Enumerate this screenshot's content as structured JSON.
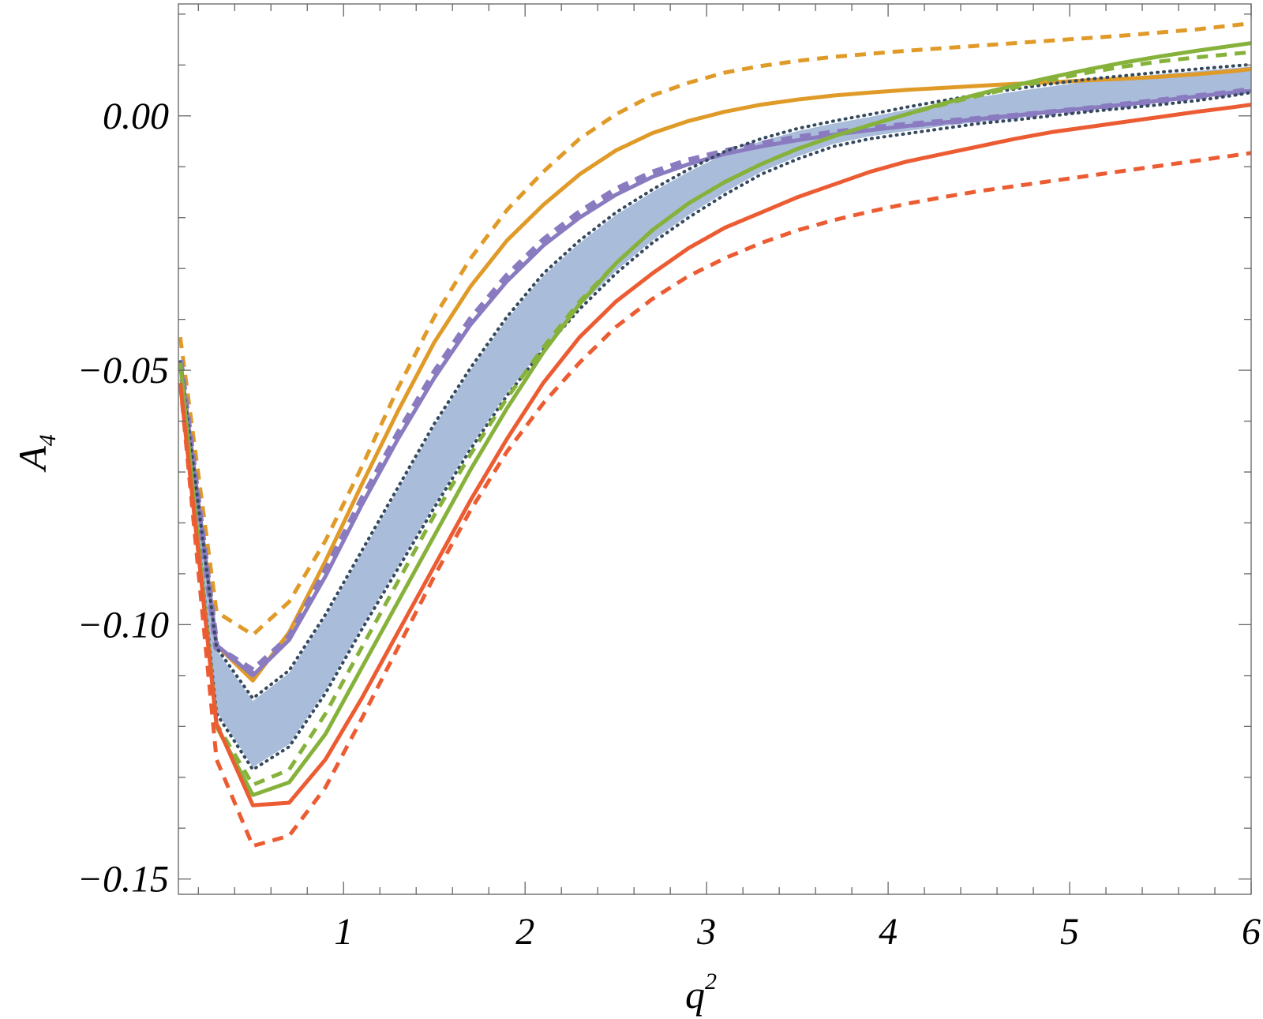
{
  "chart_data": {
    "type": "line",
    "xlabel": {
      "base": "q",
      "sup": "2"
    },
    "ylabel": {
      "base": "A",
      "sub": "4"
    },
    "xlim": [
      0.09,
      6.0
    ],
    "ylim": [
      -0.153,
      0.022
    ],
    "x_ticks": [
      {
        "value": 1,
        "label": "1"
      },
      {
        "value": 2,
        "label": "2"
      },
      {
        "value": 3,
        "label": "3"
      },
      {
        "value": 4,
        "label": "4"
      },
      {
        "value": 5,
        "label": "5"
      },
      {
        "value": 6,
        "label": "6"
      }
    ],
    "y_ticks": [
      {
        "value": 0.0,
        "label": "0.00"
      },
      {
        "value": -0.05,
        "label": "−0.05"
      },
      {
        "value": -0.1,
        "label": "−0.10"
      },
      {
        "value": -0.15,
        "label": "−0.15"
      }
    ],
    "x_minor_step": 0.2,
    "y_minor_step": 0.01,
    "grid": false,
    "x": [
      0.1,
      0.3,
      0.5,
      0.7,
      0.9,
      1.1,
      1.3,
      1.5,
      1.7,
      1.9,
      2.1,
      2.3,
      2.5,
      2.7,
      2.9,
      3.1,
      3.3,
      3.5,
      3.7,
      3.9,
      4.1,
      4.3,
      4.5,
      4.7,
      4.9,
      5.1,
      5.3,
      5.5,
      5.7,
      5.9,
      6.0
    ],
    "band": {
      "color": "#a9bcda",
      "lower": [
        -0.0485,
        -0.117,
        -0.128,
        -0.1235,
        -0.113,
        -0.1005,
        -0.0885,
        -0.0765,
        -0.065,
        -0.0545,
        -0.0455,
        -0.0375,
        -0.0305,
        -0.0245,
        -0.0195,
        -0.015,
        -0.011,
        -0.008,
        -0.0055,
        -0.004,
        -0.003,
        -0.002,
        -0.0012,
        -0.0005,
        0.0005,
        0.0013,
        0.002,
        0.0028,
        0.0037,
        0.0048,
        0.0055
      ],
      "upper": [
        -0.0485,
        -0.105,
        -0.115,
        -0.1095,
        -0.0985,
        -0.086,
        -0.0735,
        -0.061,
        -0.05,
        -0.04,
        -0.0315,
        -0.025,
        -0.0195,
        -0.015,
        -0.011,
        -0.0075,
        -0.005,
        -0.003,
        -0.0015,
        -0.0002,
        0.0012,
        0.0025,
        0.0037,
        0.0048,
        0.0058,
        0.0068,
        0.0075,
        0.0082,
        0.0088,
        0.0094,
        0.0097
      ]
    },
    "series": [
      {
        "color": "#e09a28",
        "style": "dashed",
        "width": 5,
        "values": [
          -0.0435,
          -0.0975,
          -0.102,
          -0.0955,
          -0.0835,
          -0.069,
          -0.0535,
          -0.0395,
          -0.028,
          -0.0185,
          -0.011,
          -0.0045,
          0.0003,
          0.004,
          0.0065,
          0.0085,
          0.0098,
          0.0108,
          0.0116,
          0.0122,
          0.0128,
          0.0133,
          0.0138,
          0.0143,
          0.0148,
          0.0153,
          0.0158,
          0.0164,
          0.017,
          0.0178,
          0.0182
        ]
      },
      {
        "color": "#e09a28",
        "style": "solid",
        "width": 5,
        "values": [
          -0.048,
          -0.104,
          -0.111,
          -0.1015,
          -0.0875,
          -0.0725,
          -0.058,
          -0.0445,
          -0.0335,
          -0.0245,
          -0.0175,
          -0.0115,
          -0.0068,
          -0.0034,
          -0.001,
          0.0008,
          0.0022,
          0.0032,
          0.004,
          0.0046,
          0.0051,
          0.0055,
          0.0059,
          0.0063,
          0.0066,
          0.007,
          0.0073,
          0.0077,
          0.0082,
          0.0088,
          0.0092
        ]
      },
      {
        "color": "#8a7bc0",
        "style": "dashed",
        "width": 8,
        "values": [
          -0.048,
          -0.1045,
          -0.109,
          -0.1025,
          -0.0895,
          -0.0755,
          -0.0625,
          -0.0505,
          -0.04,
          -0.0315,
          -0.0245,
          -0.019,
          -0.0145,
          -0.0112,
          -0.0088,
          -0.007,
          -0.0055,
          -0.0043,
          -0.0033,
          -0.0025,
          -0.0018,
          -0.0012,
          -0.0006,
          0.0,
          0.0007,
          0.0014,
          0.0022,
          0.003,
          0.0038,
          0.0046,
          0.0051
        ]
      },
      {
        "color": "#8a7bc0",
        "style": "solid",
        "width": 5,
        "values": [
          -0.048,
          -0.104,
          -0.11,
          -0.103,
          -0.0905,
          -0.0765,
          -0.0635,
          -0.0515,
          -0.041,
          -0.0325,
          -0.0255,
          -0.02,
          -0.0155,
          -0.012,
          -0.0095,
          -0.0075,
          -0.006,
          -0.0048,
          -0.0037,
          -0.0028,
          -0.002,
          -0.0013,
          -0.0006,
          0.0001,
          0.0008,
          0.0015,
          0.0022,
          0.003,
          0.0038,
          0.0046,
          0.005
        ]
      },
      {
        "color": "#34495e",
        "style": "dotted",
        "width": 4,
        "values": [
          -0.0485,
          -0.1045,
          -0.1145,
          -0.109,
          -0.098,
          -0.0855,
          -0.073,
          -0.0605,
          -0.0495,
          -0.0395,
          -0.031,
          -0.0245,
          -0.019,
          -0.0145,
          -0.0105,
          -0.007,
          -0.0045,
          -0.0025,
          -0.001,
          0.0003,
          0.0017,
          0.003,
          0.0042,
          0.0053,
          0.0063,
          0.0072,
          0.0079,
          0.0086,
          0.0092,
          0.0098,
          0.0101
        ]
      },
      {
        "color": "#34495e",
        "style": "dotted",
        "width": 4,
        "values": [
          -0.0485,
          -0.1175,
          -0.1285,
          -0.124,
          -0.1135,
          -0.101,
          -0.089,
          -0.077,
          -0.0655,
          -0.055,
          -0.046,
          -0.038,
          -0.031,
          -0.025,
          -0.02,
          -0.0155,
          -0.0115,
          -0.0085,
          -0.006,
          -0.0045,
          -0.0035,
          -0.0025,
          -0.0015,
          -0.0008,
          0.0,
          0.0008,
          0.0015,
          0.0022,
          0.003,
          0.004,
          0.0046
        ]
      },
      {
        "color": "#86b23b",
        "style": "dashed",
        "width": 5,
        "values": [
          -0.0485,
          -0.1195,
          -0.1315,
          -0.1285,
          -0.1175,
          -0.1045,
          -0.0915,
          -0.0785,
          -0.0665,
          -0.0555,
          -0.0455,
          -0.0365,
          -0.029,
          -0.0225,
          -0.0172,
          -0.013,
          -0.0095,
          -0.0065,
          -0.004,
          -0.0018,
          0.0003,
          0.0022,
          0.004,
          0.0056,
          0.0071,
          0.0085,
          0.0097,
          0.0107,
          0.0115,
          0.0122,
          0.0125
        ]
      },
      {
        "color": "#86b23b",
        "style": "solid",
        "width": 5,
        "values": [
          -0.0485,
          -0.12,
          -0.1335,
          -0.131,
          -0.1215,
          -0.1085,
          -0.0955,
          -0.0825,
          -0.0695,
          -0.0575,
          -0.0465,
          -0.037,
          -0.029,
          -0.0225,
          -0.0172,
          -0.013,
          -0.0095,
          -0.0065,
          -0.004,
          -0.0018,
          0.0003,
          0.0024,
          0.0043,
          0.006,
          0.0076,
          0.0091,
          0.0105,
          0.0117,
          0.0128,
          0.0138,
          0.0143
        ]
      },
      {
        "color": "#ec5c33",
        "style": "solid",
        "width": 5,
        "values": [
          -0.0525,
          -0.1195,
          -0.1355,
          -0.135,
          -0.1265,
          -0.1145,
          -0.1015,
          -0.0885,
          -0.0755,
          -0.0635,
          -0.0525,
          -0.0435,
          -0.0365,
          -0.031,
          -0.026,
          -0.022,
          -0.019,
          -0.016,
          -0.0135,
          -0.011,
          -0.009,
          -0.0075,
          -0.006,
          -0.0045,
          -0.0032,
          -0.0022,
          -0.0012,
          -0.0002,
          0.0008,
          0.0017,
          0.0022
        ]
      },
      {
        "color": "#ec5c33",
        "style": "dashed",
        "width": 5,
        "values": [
          -0.0525,
          -0.1265,
          -0.1435,
          -0.1415,
          -0.132,
          -0.1185,
          -0.1045,
          -0.0905,
          -0.0775,
          -0.066,
          -0.0565,
          -0.0485,
          -0.0415,
          -0.036,
          -0.0315,
          -0.028,
          -0.025,
          -0.0225,
          -0.0205,
          -0.0188,
          -0.0173,
          -0.016,
          -0.0148,
          -0.0138,
          -0.0128,
          -0.0118,
          -0.0108,
          -0.0098,
          -0.0088,
          -0.0078,
          -0.0073
        ]
      }
    ]
  }
}
